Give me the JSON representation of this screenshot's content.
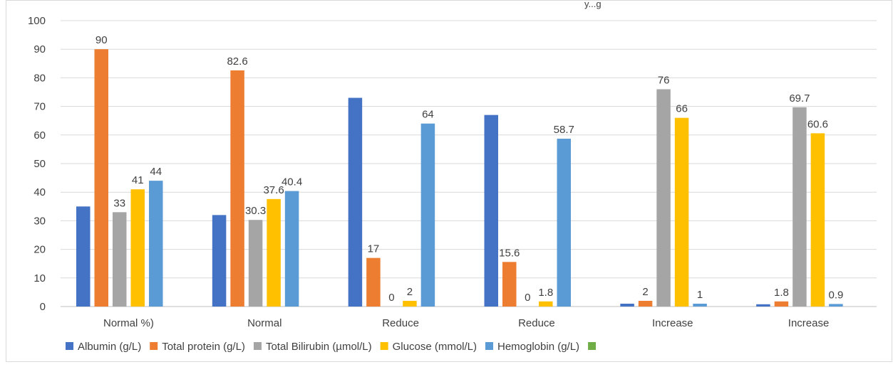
{
  "header_fragment": "y...g",
  "chart_data": {
    "type": "bar",
    "title": "",
    "xlabel": "",
    "ylabel": "",
    "ylim": [
      0,
      100
    ],
    "yticks": [
      0,
      10,
      20,
      30,
      40,
      50,
      60,
      70,
      80,
      90,
      100
    ],
    "grid": true,
    "legend_position": "bottom",
    "categories": [
      "Normal %)",
      "Normal",
      "Reduce",
      "Reduce",
      "Increase",
      "Increase"
    ],
    "series": [
      {
        "name": "Albumin (g/L)",
        "color": "#4472c4",
        "values": [
          35,
          32,
          73,
          67,
          1,
          0.8
        ],
        "labels": [
          null,
          null,
          null,
          null,
          null,
          null
        ]
      },
      {
        "name": "Total protein (g/L)",
        "color": "#ed7d31",
        "values": [
          90,
          82.6,
          17,
          15.6,
          2,
          1.8
        ],
        "labels": [
          "90",
          "82.6",
          "17",
          "15.6",
          "2",
          "1.8"
        ]
      },
      {
        "name": "Total Bilirubin (µmol/L)",
        "color": "#a5a5a5",
        "values": [
          33,
          30.3,
          0,
          0,
          76,
          69.7
        ],
        "labels": [
          "33",
          "30.3",
          "0",
          "0",
          "76",
          "69.7"
        ]
      },
      {
        "name": "Glucose (mmol/L)",
        "color": "#ffc000",
        "values": [
          41,
          37.6,
          2,
          1.8,
          66,
          60.6
        ],
        "labels": [
          "41",
          "37.6",
          "2",
          "1.8",
          "66",
          "60.6"
        ]
      },
      {
        "name": "Hemoglobin   (g/L)",
        "color": "#5b9bd5",
        "values": [
          44,
          40.4,
          64,
          58.7,
          1,
          0.9
        ],
        "labels": [
          "44",
          "40.4",
          "64",
          "58.7",
          "1",
          "0.9"
        ]
      },
      {
        "name": "",
        "color": "#70ad47",
        "values": [
          0,
          0,
          0,
          0,
          0,
          0
        ],
        "labels": [
          null,
          null,
          null,
          null,
          null,
          null
        ]
      }
    ]
  }
}
